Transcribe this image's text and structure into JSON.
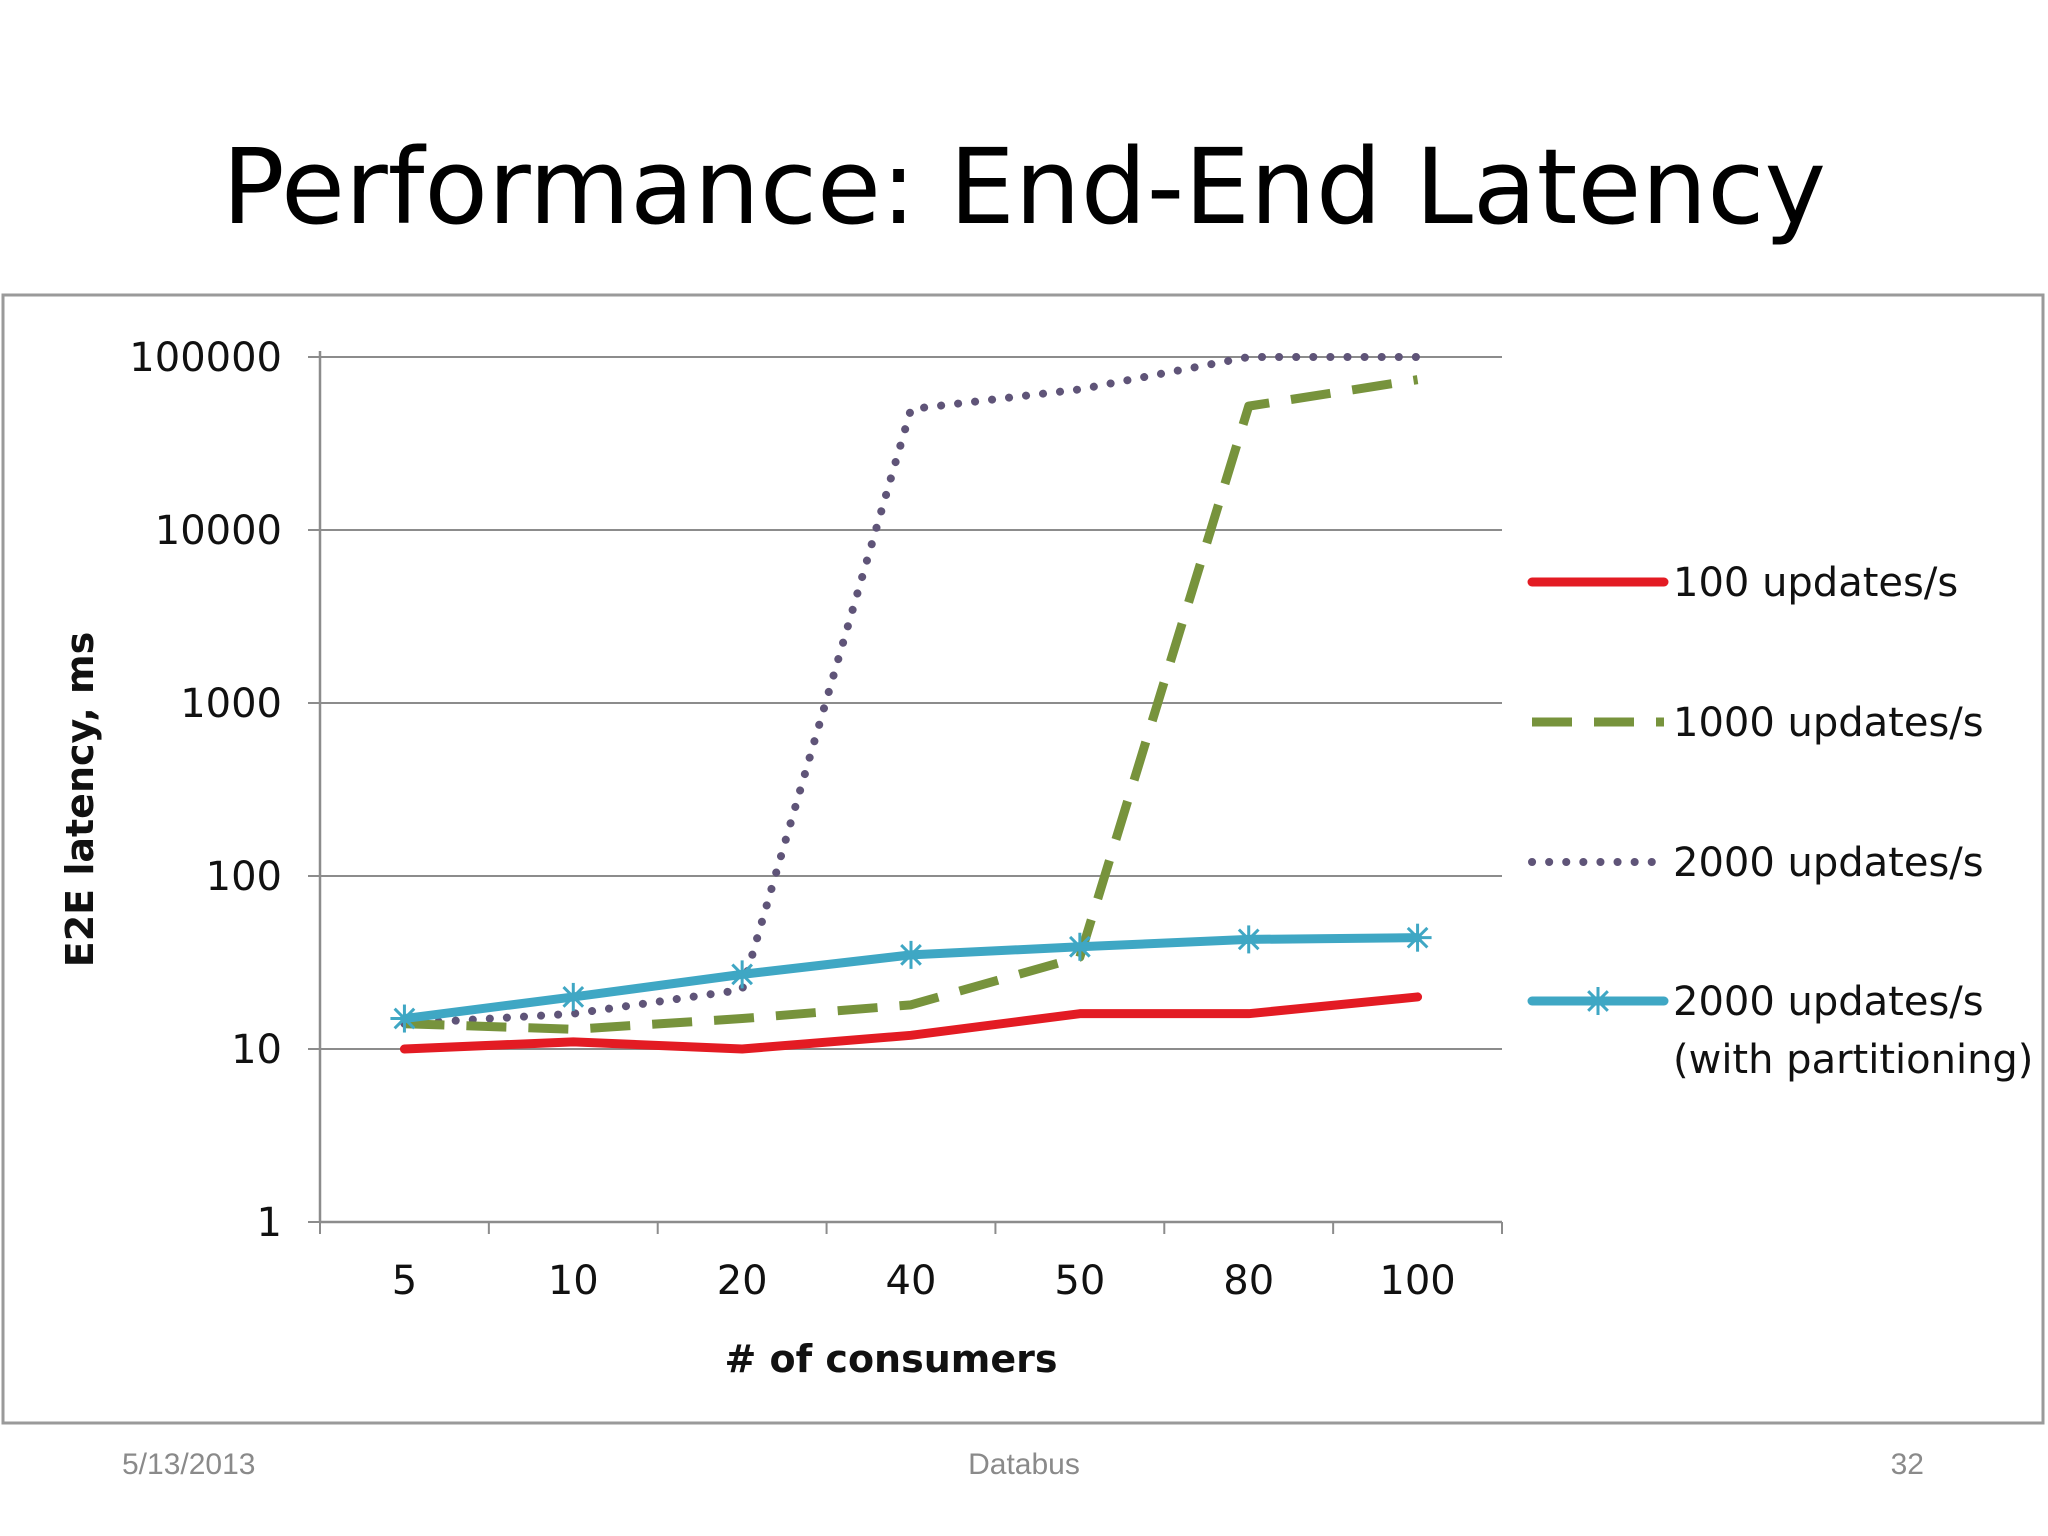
{
  "slide": {
    "title": "Performance: End-End Latency",
    "footer_date": "5/13/2013",
    "footer_center": "Databus",
    "page_number": "32"
  },
  "chart_data": {
    "type": "line",
    "title": "",
    "xlabel": "# of consumers",
    "ylabel": "E2E latency,  ms",
    "y_scale": "log",
    "ylim": [
      1,
      100000
    ],
    "y_ticks": [
      "1",
      "10",
      "100",
      "1000",
      "10000",
      "100000"
    ],
    "categories": [
      "5",
      "10",
      "20",
      "40",
      "50",
      "80",
      "100"
    ],
    "grid": true,
    "legend_position": "right",
    "series": [
      {
        "name": "100 updates/s",
        "values": [
          10,
          11,
          10,
          12,
          16,
          16,
          20
        ],
        "color": "#e31b23",
        "style": "solid"
      },
      {
        "name": "1000 updates/s",
        "values": [
          14,
          13,
          15,
          18,
          34,
          52000,
          74000
        ],
        "color": "#77933c",
        "style": "dashed"
      },
      {
        "name": "2000 updates/s",
        "values": [
          14,
          16,
          22,
          50000,
          65000,
          100000,
          100000
        ],
        "color": "#5f5478",
        "style": "dotted"
      },
      {
        "name": "2000 updates/s (with partitioning)",
        "values": [
          15,
          20,
          27,
          35,
          39,
          43,
          44
        ],
        "color": "#3fa7c4",
        "style": "solid-star"
      }
    ]
  }
}
